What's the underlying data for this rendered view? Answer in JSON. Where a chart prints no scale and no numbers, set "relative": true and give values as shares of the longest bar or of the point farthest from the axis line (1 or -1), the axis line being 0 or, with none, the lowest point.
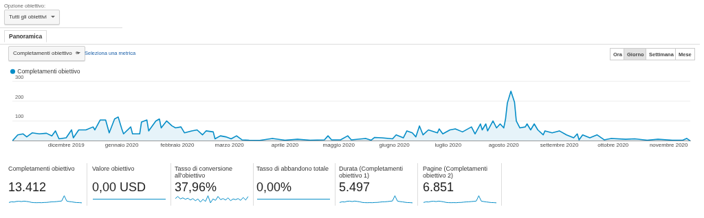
{
  "chart_data": [
    {
      "type": "area",
      "legend": "top left",
      "grid": "y",
      "marker": "none",
      "line_style": "solid",
      "annotations": [
        "Opzione obiettivo:",
        "Tutti gli obiettivi",
        "Panoramica",
        "Completamenti obiettivo",
        "e",
        "Seleziona una metrica",
        "Ora",
        "Giorno",
        "Settimana",
        "Mese"
      ],
      "x": [
        "2019-11-01",
        "2019-11-04",
        "2019-11-07",
        "2019-11-09",
        "2019-11-12",
        "2019-11-16",
        "2019-11-20",
        "2019-11-23",
        "2019-11-25",
        "2019-11-27",
        "2019-12-01",
        "2019-12-04",
        "2019-12-05",
        "2019-12-08",
        "2019-12-12",
        "2019-12-16",
        "2019-12-17",
        "2019-12-20",
        "2019-12-23",
        "2019-12-25",
        "2019-12-28",
        "2019-12-30",
        "2020-01-01",
        "2020-01-02",
        "2020-01-06",
        "2020-01-07",
        "2020-01-11",
        "2020-01-12",
        "2020-01-15",
        "2020-01-16",
        "2020-01-20",
        "2020-01-22",
        "2020-01-23",
        "2020-01-26",
        "2020-01-29",
        "2020-01-31",
        "2020-02-03",
        "2020-02-05",
        "2020-02-09",
        "2020-02-12",
        "2020-02-15",
        "2020-02-17",
        "2020-02-21",
        "2020-02-22",
        "2020-02-25",
        "2020-02-28",
        "2020-03-02",
        "2020-03-05",
        "2020-03-08",
        "2020-03-12",
        "2020-03-18",
        "2020-03-25",
        "2020-04-01",
        "2020-04-08",
        "2020-04-15",
        "2020-04-23",
        "2020-04-25",
        "2020-04-27",
        "2020-05-02",
        "2020-05-06",
        "2020-05-08",
        "2020-05-16",
        "2020-05-19",
        "2020-05-21",
        "2020-05-25",
        "2020-05-31",
        "2020-06-02",
        "2020-06-06",
        "2020-06-08",
        "2020-06-11",
        "2020-06-13",
        "2020-06-15",
        "2020-06-17",
        "2020-06-20",
        "2020-06-25",
        "2020-06-26",
        "2020-06-28",
        "2020-07-02",
        "2020-07-05",
        "2020-07-09",
        "2020-07-14",
        "2020-07-16",
        "2020-07-19",
        "2020-07-20",
        "2020-07-22",
        "2020-07-23",
        "2020-07-26",
        "2020-07-28",
        "2020-07-30",
        "2020-08-01",
        "2020-08-02",
        "2020-08-03",
        "2020-08-05",
        "2020-08-07",
        "2020-08-08",
        "2020-08-10",
        "2020-08-13",
        "2020-08-14",
        "2020-08-16",
        "2020-08-18",
        "2020-08-20",
        "2020-08-23",
        "2020-08-24",
        "2020-08-28",
        "2020-09-01",
        "2020-09-05",
        "2020-09-09",
        "2020-09-11",
        "2020-09-12",
        "2020-09-14",
        "2020-09-18",
        "2020-09-22",
        "2020-09-26",
        "2020-09-30",
        "2020-10-08",
        "2020-10-13",
        "2020-10-20",
        "2020-10-26",
        "2020-11-03",
        "2020-11-09",
        "2020-11-11",
        "2020-11-13"
      ],
      "series": [
        {
          "name": "Completamenti obiettivo",
          "color": "#058dc7",
          "values": [
            0,
            30,
            35,
            20,
            40,
            35,
            38,
            25,
            50,
            10,
            15,
            55,
            15,
            55,
            55,
            70,
            55,
            105,
            105,
            40,
            110,
            120,
            60,
            35,
            70,
            35,
            35,
            95,
            105,
            50,
            100,
            110,
            65,
            100,
            75,
            65,
            70,
            40,
            50,
            55,
            30,
            50,
            45,
            10,
            25,
            20,
            10,
            25,
            5,
            3,
            2,
            12,
            3,
            8,
            3,
            5,
            25,
            5,
            5,
            25,
            5,
            12,
            3,
            17,
            15,
            10,
            30,
            15,
            50,
            40,
            20,
            75,
            30,
            55,
            40,
            60,
            35,
            55,
            60,
            45,
            70,
            35,
            85,
            55,
            85,
            50,
            100,
            65,
            85,
            65,
            110,
            190,
            250,
            195,
            100,
            65,
            70,
            85,
            55,
            85,
            55,
            30,
            50,
            40,
            50,
            30,
            15,
            35,
            5,
            30,
            15,
            30,
            5,
            12,
            8,
            10,
            3,
            8,
            3,
            4,
            12,
            0
          ]
        }
      ],
      "xlim": [
        "2019-11-01",
        "2020-11-13"
      ],
      "xticks": [
        {
          "value": "2019-12-01",
          "label": "dicembre 2019"
        },
        {
          "value": "2020-01-01",
          "label": "gennaio 2020"
        },
        {
          "value": "2020-02-01",
          "label": "febbraio 2020"
        },
        {
          "value": "2020-03-01",
          "label": "marzo 2020"
        },
        {
          "value": "2020-04-01",
          "label": "aprile 2020"
        },
        {
          "value": "2020-05-01",
          "label": "maggio 2020"
        },
        {
          "value": "2020-06-01",
          "label": "giugno 2020"
        },
        {
          "value": "2020-07-01",
          "label": "luglio 2020"
        },
        {
          "value": "2020-08-01",
          "label": "agosto 2020"
        },
        {
          "value": "2020-09-01",
          "label": "settembre 2020"
        },
        {
          "value": "2020-10-01",
          "label": "ottobre 2020"
        },
        {
          "value": "2020-11-01",
          "label": "novembre 2020"
        }
      ],
      "ylim": [
        0,
        300
      ],
      "yticks": [
        {
          "value": 0,
          "label": null
        },
        100,
        200,
        300
      ]
    },
    {
      "type": "line",
      "relative": true,
      "tick_labels": false,
      "title": "Completamenti obiettivo",
      "annotations": [
        "13.412"
      ],
      "color": "#058dc7",
      "categories": [
        null,
        null,
        null,
        null,
        null,
        null,
        null,
        null,
        null,
        null,
        null,
        null,
        null,
        null,
        null,
        null,
        null,
        null,
        null,
        null,
        null,
        null,
        null,
        null,
        null,
        null,
        null,
        null,
        null,
        null
      ],
      "values": [
        0.05,
        0.15,
        0.12,
        0.2,
        0.22,
        0.18,
        0.24,
        0.2,
        0.15,
        0.06,
        0.03,
        0.02,
        0.03,
        0.02,
        0.05,
        0.06,
        0.1,
        0.14,
        0.15,
        0.18,
        0.22,
        0.26,
        1,
        0.25,
        0.18,
        0.14,
        0.08,
        0.04,
        0.03,
        0
      ]
    },
    {
      "type": "other",
      "title": "Valore obiettivo",
      "annotations": [
        "0,00 USD"
      ]
    },
    {
      "type": "line",
      "relative": true,
      "tick_labels": false,
      "title": "Tasso di conversione all'obiettivo",
      "annotations": [
        "37,96%"
      ],
      "color": "#058dc7",
      "categories": [
        null,
        null,
        null,
        null,
        null,
        null,
        null,
        null,
        null,
        null,
        null,
        null,
        null,
        null,
        null,
        null,
        null,
        null,
        null,
        null,
        null,
        null,
        null,
        null,
        null,
        null,
        null,
        null,
        null,
        null
      ],
      "values": [
        0.6,
        0.9,
        0.55,
        0.7,
        0.5,
        0.65,
        0.4,
        0.6,
        0.3,
        0.55,
        0.1,
        0.5,
        0.2,
        1,
        0,
        0.55,
        0.35,
        0.9,
        0.45,
        0.6,
        0.4,
        0.7,
        0.3,
        0.55,
        0.45,
        0.6,
        0.35,
        0.75,
        0.4,
        0.9
      ]
    },
    {
      "type": "other",
      "title": "Tasso di abbandono totale",
      "annotations": [
        "0,00%"
      ]
    },
    {
      "type": "line",
      "relative": true,
      "tick_labels": false,
      "title": "Durata (Completamenti obiettivo 1)",
      "annotations": [
        "5.497"
      ],
      "color": "#058dc7",
      "categories": [
        null,
        null,
        null,
        null,
        null,
        null,
        null,
        null,
        null,
        null,
        null,
        null,
        null,
        null,
        null,
        null,
        null,
        null,
        null,
        null,
        null,
        null,
        null,
        null,
        null,
        null,
        null,
        null,
        null,
        null
      ],
      "values": [
        0.05,
        0.15,
        0.12,
        0.22,
        0.24,
        0.18,
        0.25,
        0.2,
        0.15,
        0.06,
        0.03,
        0.02,
        0.03,
        0.02,
        0.05,
        0.06,
        0.1,
        0.14,
        0.15,
        0.18,
        0.22,
        0.26,
        1,
        0.25,
        0.18,
        0.14,
        0.08,
        0.04,
        0.03,
        0
      ]
    },
    {
      "type": "line",
      "relative": true,
      "tick_labels": false,
      "title": "Pagine (Completamenti obiettivo 2)",
      "annotations": [
        "6.851"
      ],
      "color": "#058dc7",
      "categories": [
        null,
        null,
        null,
        null,
        null,
        null,
        null,
        null,
        null,
        null,
        null,
        null,
        null,
        null,
        null,
        null,
        null,
        null,
        null,
        null,
        null,
        null,
        null,
        null,
        null,
        null,
        null,
        null,
        null,
        null
      ],
      "values": [
        0.05,
        0.14,
        0.12,
        0.2,
        0.23,
        0.18,
        0.24,
        0.2,
        0.14,
        0.06,
        0.03,
        0.02,
        0.03,
        0.02,
        0.05,
        0.06,
        0.1,
        0.13,
        0.15,
        0.18,
        0.21,
        0.25,
        1,
        0.24,
        0.18,
        0.13,
        0.08,
        0.04,
        0.03,
        0
      ]
    }
  ]
}
